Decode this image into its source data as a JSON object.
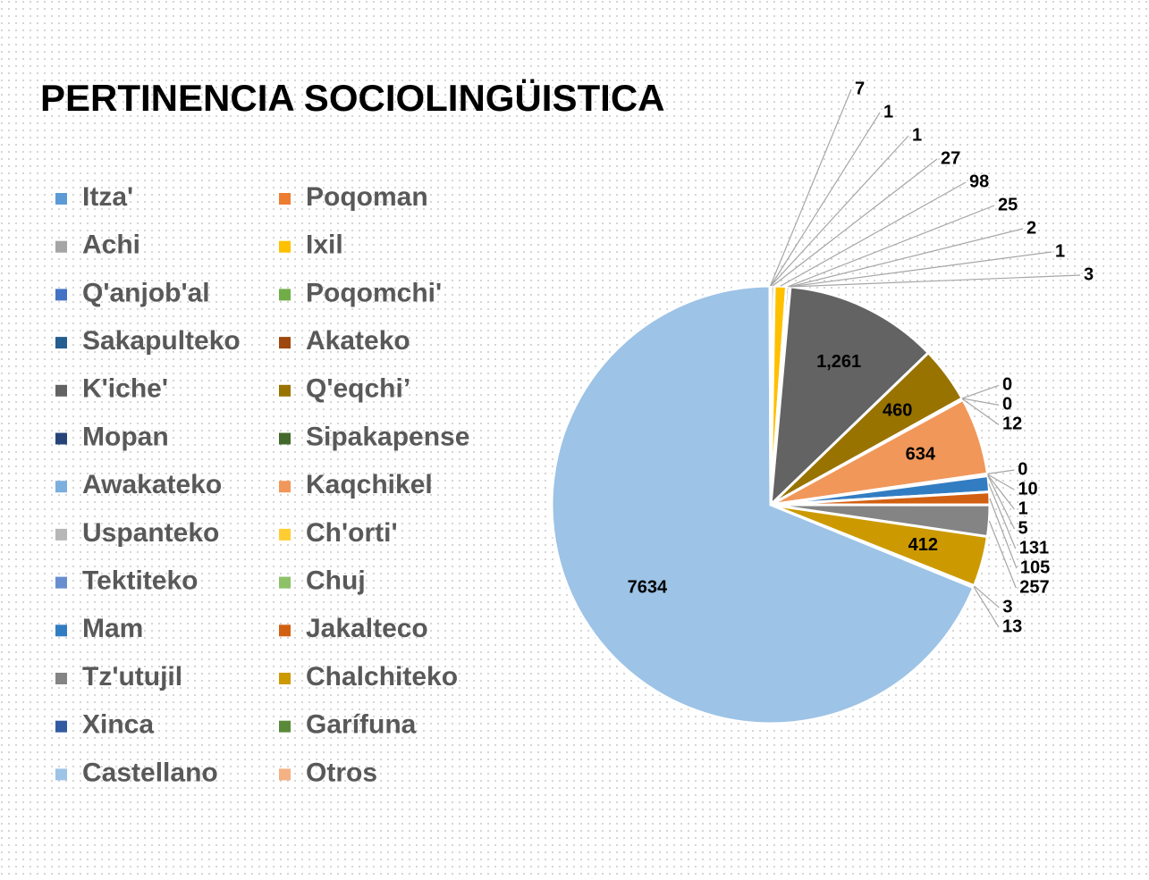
{
  "chart_data": {
    "type": "pie",
    "title": "PERTINENCIA SOCIOLINGÜISTICA",
    "categories": [
      "Itza'",
      "Poqoman",
      "Achi",
      "Ixil",
      "Q'anjob'al",
      "Poqomchi'",
      "Sakapulteko",
      "Akateko",
      "K'iche'",
      "Q'eqchi’",
      "Mopan",
      "Sipakapense",
      "Awakateko",
      "Kaqchikel",
      "Uspanteko",
      "Ch'orti'",
      "Tektiteko",
      "Chuj",
      "Mam",
      "Jakalteco",
      "Tz'utujil",
      "Chalchiteko",
      "Xinca",
      "Garífuna",
      "Castellano",
      "Otros"
    ],
    "values": [
      1,
      1,
      27,
      98,
      25,
      2,
      1,
      3,
      1261,
      460,
      0,
      0,
      12,
      634,
      0,
      10,
      1,
      5,
      131,
      105,
      257,
      412,
      3,
      13,
      7634,
      7
    ],
    "value_labels": [
      "1",
      "1",
      "27",
      "98",
      "25",
      "2",
      "1",
      "3",
      "1,261",
      "460",
      "0",
      "0",
      "12",
      "634",
      "0",
      "10",
      "1",
      "5",
      "131",
      "105",
      "257",
      "412",
      "3",
      "13",
      "7634",
      "7"
    ],
    "colors": [
      "#5B9BD5",
      "#ED7D31",
      "#A5A5A5",
      "#FFC000",
      "#4472C4",
      "#70AD47",
      "#255E91",
      "#9E480E",
      "#636363",
      "#997300",
      "#264478",
      "#43682B",
      "#7CAFDD",
      "#F1975A",
      "#B7B7B7",
      "#FFCD33",
      "#698ED0",
      "#8CC168",
      "#327DC2",
      "#D26012",
      "#848484",
      "#CC9A00",
      "#335AA1",
      "#5A8A39",
      "#9DC3E6",
      "#F4B183"
    ],
    "legend": "left"
  }
}
